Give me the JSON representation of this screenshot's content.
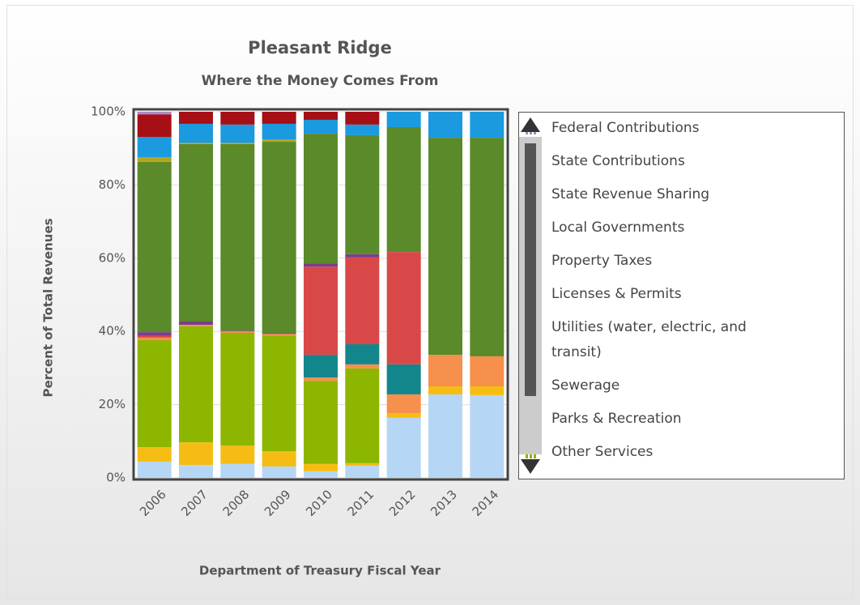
{
  "chart_data": {
    "type": "stacked_bar",
    "title": "Pleasant Ridge",
    "subtitle": "Where the Money Comes From",
    "x_label": "Department of Treasury Fiscal Year",
    "y_label": "Percent of Total Revenues",
    "categories": [
      "2006",
      "2007",
      "2008",
      "2009",
      "2010",
      "2011",
      "2012",
      "2013",
      "2014"
    ],
    "ylim": [
      0,
      100
    ],
    "yticks": [
      {
        "value": 0,
        "label": "0%"
      },
      {
        "value": 20,
        "label": "20%"
      },
      {
        "value": 40,
        "label": "40%"
      },
      {
        "value": 60,
        "label": "60%"
      },
      {
        "value": 80,
        "label": "80%"
      },
      {
        "value": 100,
        "label": "100%"
      }
    ],
    "grid": true,
    "series": [
      {
        "name": "Federal Contributions",
        "color": "#a98bc4",
        "values": [
          0.7,
          0,
          0,
          0,
          0,
          0,
          0,
          0,
          0
        ]
      },
      {
        "name": "State Contributions",
        "color": "#a50f15",
        "values": [
          6.2,
          3.3,
          3.5,
          3.3,
          2.2,
          3.5,
          0,
          0,
          0
        ]
      },
      {
        "name": "State Revenue Sharing",
        "color": "#1b9ae0",
        "values": [
          5.5,
          5.2,
          5,
          4.3,
          3.8,
          2.9,
          4.2,
          7.1,
          7.1
        ]
      },
      {
        "name": "Local Governments",
        "color": "#b5a51c",
        "values": [
          1.3,
          0.3,
          0.3,
          0.6,
          0,
          0,
          0,
          0,
          0
        ]
      },
      {
        "name": "Property Taxes",
        "color": "#5a8a2a",
        "values": [
          46.5,
          48.5,
          51,
          52.3,
          35.4,
          32.5,
          34.1,
          59.3,
          59.7
        ]
      },
      {
        "name": "Licenses & Permits",
        "color": "#7d3c8e",
        "values": [
          1,
          0.9,
          0.2,
          0.2,
          0.9,
          0.9,
          0,
          0,
          0
        ]
      },
      {
        "name": "Utilities (water, electric, and transit)",
        "color": "#d94848",
        "values": [
          0.5,
          0,
          0,
          0,
          24.1,
          23.7,
          30.7,
          0,
          0
        ]
      },
      {
        "name": "Sewerage",
        "color": "#13868c",
        "values": [
          0,
          0,
          0,
          0,
          6.2,
          5.5,
          8.2,
          0,
          0
        ]
      },
      {
        "name": "Parks & Recreation",
        "color": "#f78f4d",
        "values": [
          0.7,
          0.4,
          0.4,
          0.4,
          0.9,
          1.1,
          5.1,
          8.6,
          8.2
        ]
      },
      {
        "name": "Other Services",
        "color": "#8db600",
        "values": [
          29.2,
          31.7,
          30.8,
          31.6,
          22.7,
          25.9,
          0,
          0,
          0
        ]
      },
      {
        "color": "#f5bd14",
        "values": [
          4,
          6.2,
          5,
          4.2,
          2,
          0.7,
          1.3,
          2.2,
          2.4
        ]
      },
      {
        "color": "#b5d7f5",
        "values": [
          4.4,
          3.5,
          3.8,
          3.1,
          1.8,
          3.3,
          16.4,
          22.8,
          22.6
        ]
      }
    ]
  }
}
